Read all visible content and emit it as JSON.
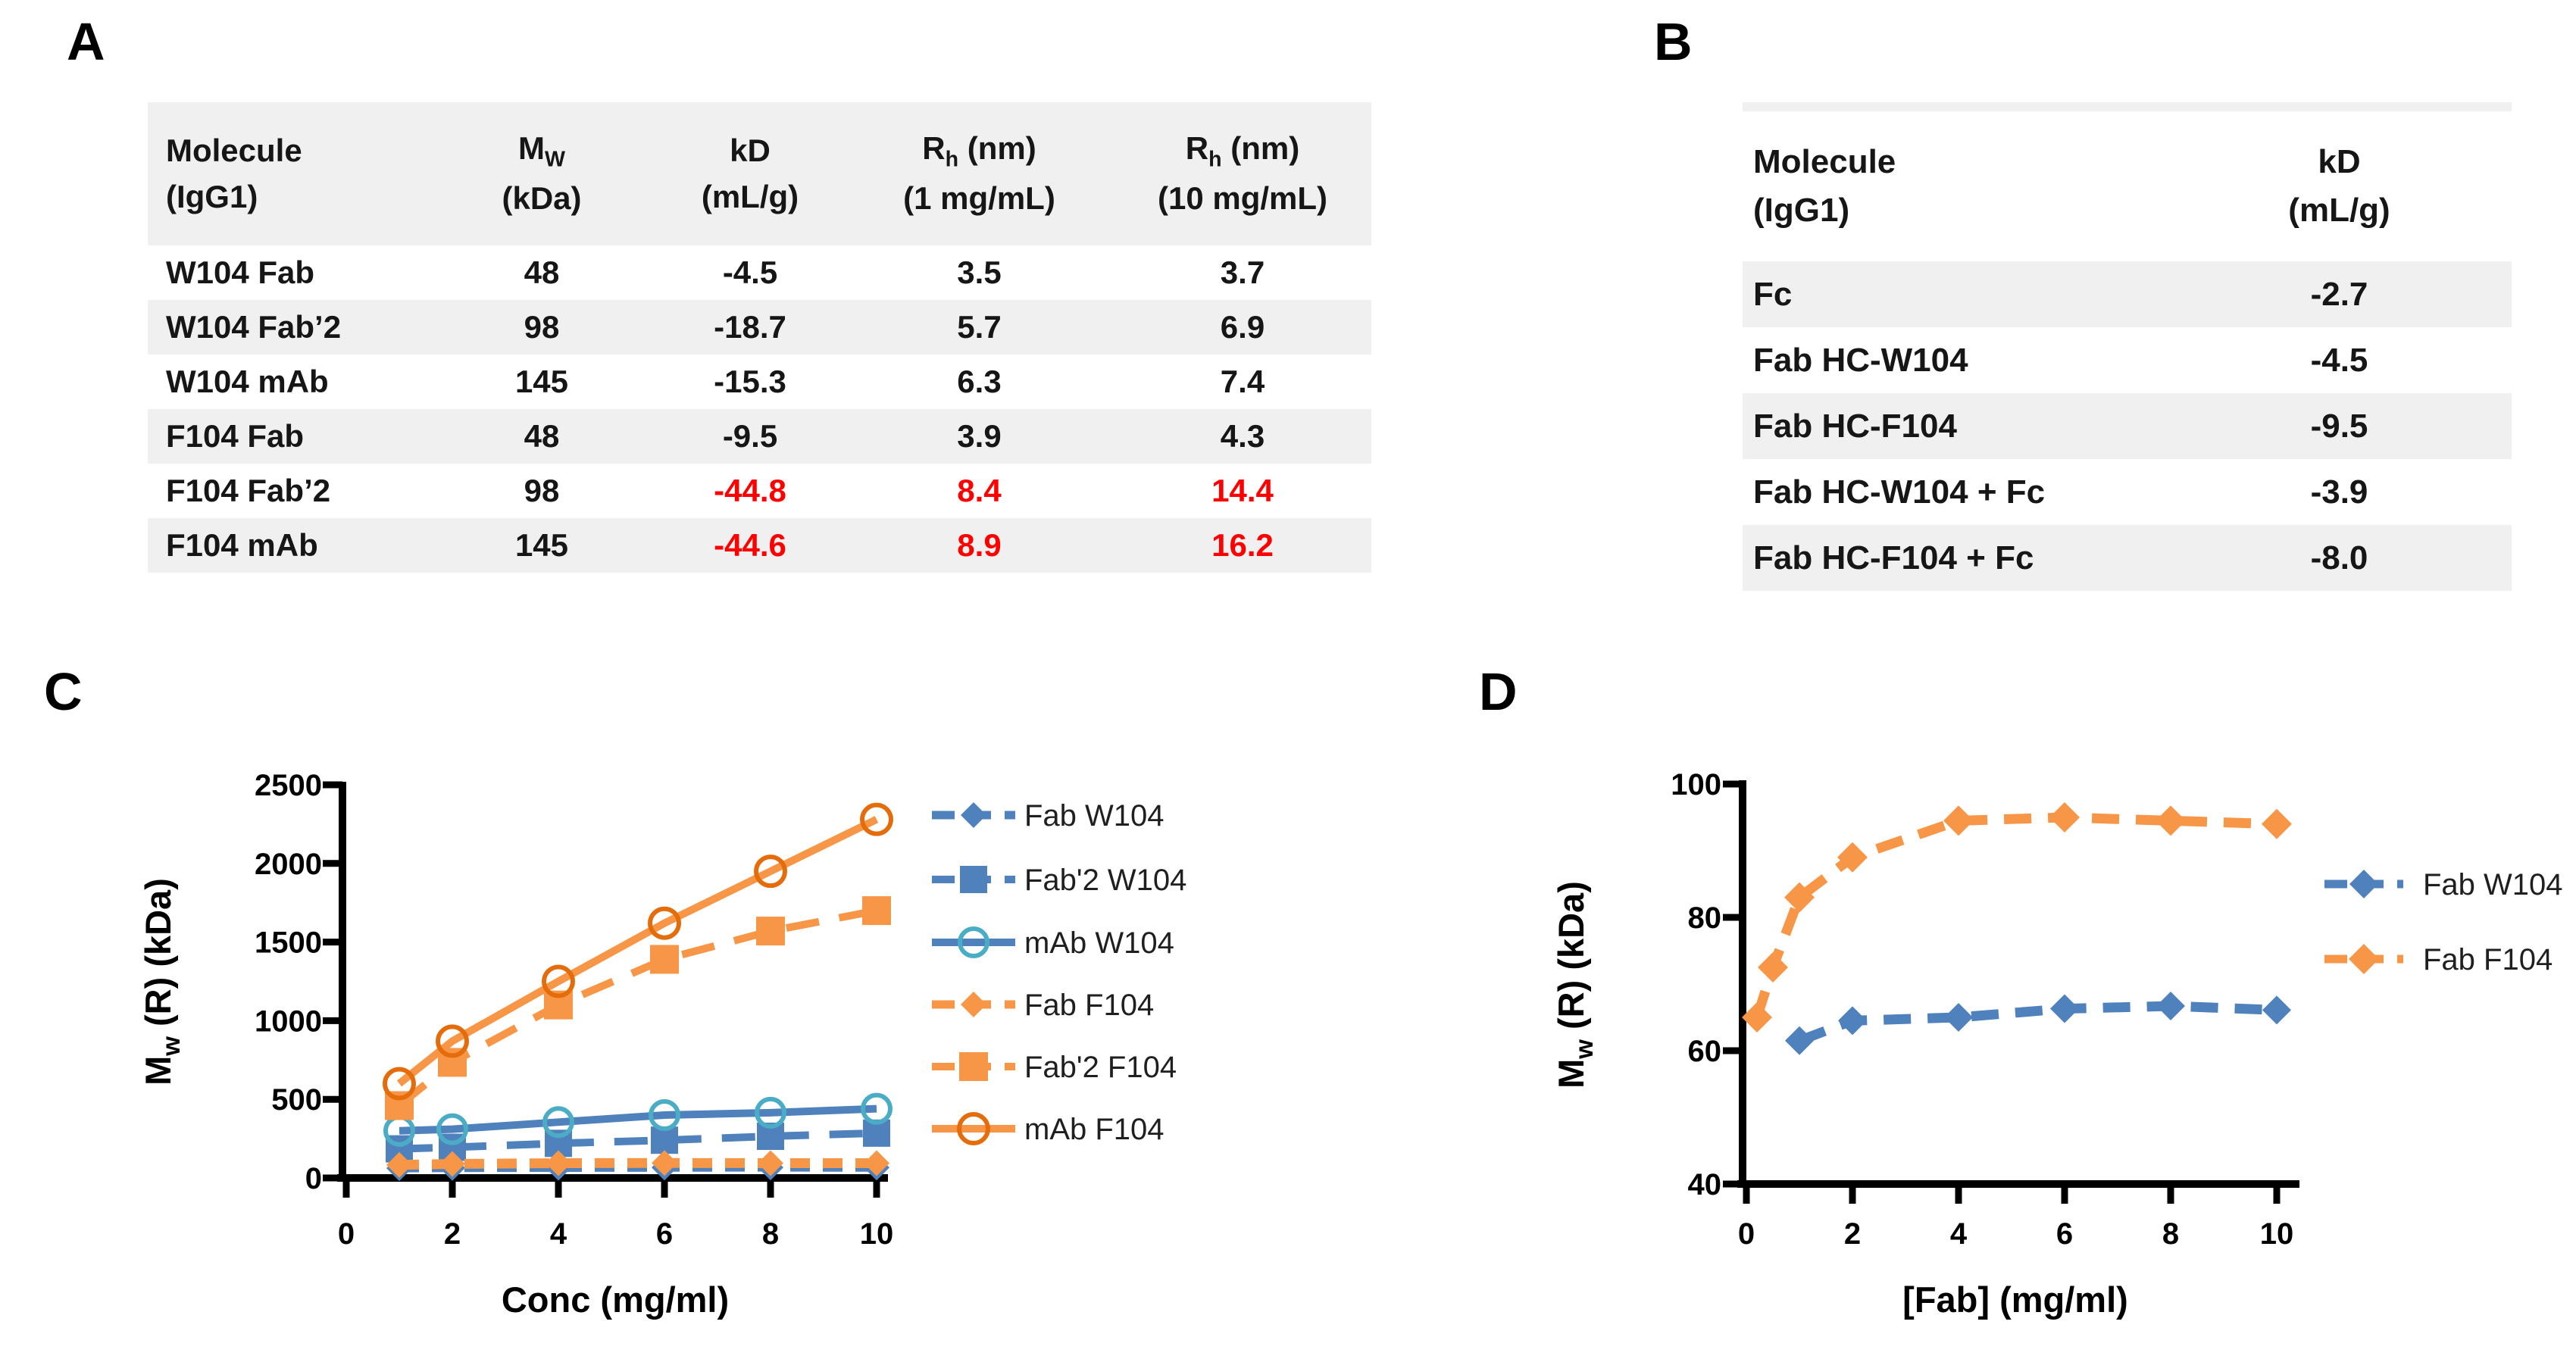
{
  "panels": {
    "a": {
      "label": "A",
      "table": {
        "header": {
          "molecule_html": "Molecule<br>(IgG1)",
          "mw_html": "M<sub>W</sub><br>(kDa)",
          "kd_html": "kD<br>(mL/g)",
          "rh1_html": "R<sub>h</sub> (nm)<br>(1 mg/mL)",
          "rh10_html": "R<sub>h</sub> (nm)<br>(10 mg/mL)"
        },
        "rows": [
          {
            "molecule": "W104 Fab",
            "mw": "48",
            "kd": "-4.5",
            "rh1": "3.5",
            "rh10": "3.7",
            "red": false
          },
          {
            "molecule": "W104 Fab’2",
            "mw": "98",
            "kd": "-18.7",
            "rh1": "5.7",
            "rh10": "6.9",
            "red": false
          },
          {
            "molecule": "W104 mAb",
            "mw": "145",
            "kd": "-15.3",
            "rh1": "6.3",
            "rh10": "7.4",
            "red": false
          },
          {
            "molecule": "F104 Fab",
            "mw": "48",
            "kd": "-9.5",
            "rh1": "3.9",
            "rh10": "4.3",
            "red": false
          },
          {
            "molecule": "F104 Fab’2",
            "mw": "98",
            "kd": "-44.8",
            "rh1": "8.4",
            "rh10": "14.4",
            "red": true
          },
          {
            "molecule": "F104 mAb",
            "mw": "145",
            "kd": "-44.6",
            "rh1": "8.9",
            "rh10": "16.2",
            "red": true
          }
        ]
      }
    },
    "b": {
      "label": "B",
      "table": {
        "header": {
          "molecule_html": "Molecule<br>(IgG1)",
          "kd_html": "kD<br>(mL/g)"
        },
        "rows": [
          {
            "molecule": "Fc",
            "kd": "-2.7"
          },
          {
            "molecule": "Fab HC-W104",
            "kd": "-4.5"
          },
          {
            "molecule": "Fab HC-F104",
            "kd": "-9.5"
          },
          {
            "molecule": "Fab HC-W104 + Fc",
            "kd": "-3.9"
          },
          {
            "molecule": "Fab HC-F104 + Fc",
            "kd": "-8.0"
          }
        ]
      }
    },
    "c": {
      "label": "C"
    },
    "d": {
      "label": "D"
    }
  },
  "colors": {
    "blue": "#4F81BD",
    "blue_circle_outline": "#4BACC6",
    "orange": "#F79646",
    "orange_circle_outline": "#E46C0A",
    "red_text": "#FF0000",
    "table_stripe": "#F0F0F0",
    "axis": "#000000",
    "legend_text": "#1f1f1f"
  },
  "chart_data": [
    {
      "type": "table",
      "panel": "A",
      "columns": [
        "Molecule (IgG1)",
        "Mw (kDa)",
        "kD (mL/g)",
        "Rh (nm) (1 mg/mL)",
        "Rh (nm) (10 mg/mL)"
      ],
      "rows": [
        [
          "W104 Fab",
          48,
          -4.5,
          3.5,
          3.7
        ],
        [
          "W104 Fab'2",
          98,
          -18.7,
          5.7,
          6.9
        ],
        [
          "W104 mAb",
          145,
          -15.3,
          6.3,
          7.4
        ],
        [
          "F104 Fab",
          48,
          -9.5,
          3.9,
          4.3
        ],
        [
          "F104 Fab'2",
          98,
          -44.8,
          8.4,
          14.4
        ],
        [
          "F104 mAb",
          145,
          -44.6,
          8.9,
          16.2
        ]
      ],
      "note": "kD, Rh(1 mg/mL) and Rh(10 mg/mL) values of F104 Fab'2 and F104 mAb rows are shown in red"
    },
    {
      "type": "table",
      "panel": "B",
      "columns": [
        "Molecule (IgG1)",
        "kD (mL/g)"
      ],
      "rows": [
        [
          "Fc",
          -2.7
        ],
        [
          "Fab HC-W104",
          -4.5
        ],
        [
          "Fab HC-F104",
          -9.5
        ],
        [
          "Fab HC-W104 + Fc",
          -3.9
        ],
        [
          "Fab HC-F104 + Fc",
          -8.0
        ]
      ]
    },
    {
      "type": "line",
      "panel": "C",
      "title": "",
      "xlabel": "Conc (mg/ml)",
      "ylabel": "Mw (R) (kDa)",
      "ylabel_segments": [
        {
          "t": "M"
        },
        {
          "t": "w",
          "sub": true
        },
        {
          "t": " (R) (kDa)"
        }
      ],
      "xlim": [
        0,
        10
      ],
      "ylim": [
        0,
        2500
      ],
      "xticks": [
        0,
        2,
        4,
        6,
        8,
        10
      ],
      "yticks": [
        0,
        500,
        1000,
        1500,
        2000,
        2500
      ],
      "grid": false,
      "legend_position": "right",
      "series": [
        {
          "name": "Fab W104",
          "color": "#4F81BD",
          "marker": "diamond",
          "line": "dashed",
          "x": [
            1,
            2,
            4,
            6,
            8,
            10
          ],
          "y": [
            62,
            64,
            65,
            66,
            67,
            66
          ]
        },
        {
          "name": "Fab'2 W104",
          "color": "#4F81BD",
          "marker": "square",
          "line": "long-dashed",
          "x": [
            1,
            2,
            4,
            6,
            8,
            10
          ],
          "y": [
            185,
            195,
            220,
            240,
            265,
            285
          ]
        },
        {
          "name": "mAb W104",
          "color": "#4F81BD",
          "marker": "circle-open",
          "marker_color": "#4BACC6",
          "line": "solid",
          "x": [
            1,
            2,
            4,
            6,
            8,
            10
          ],
          "y": [
            300,
            310,
            355,
            400,
            415,
            440
          ]
        },
        {
          "name": "Fab F104",
          "color": "#F79646",
          "marker": "diamond",
          "line": "dashed",
          "x": [
            1,
            2,
            4,
            6,
            8,
            10
          ],
          "y": [
            83,
            89,
            94,
            95,
            94,
            94
          ]
        },
        {
          "name": "Fab'2 F104",
          "color": "#F79646",
          "marker": "square",
          "line": "long-dashed",
          "x": [
            1,
            2,
            4,
            6,
            8,
            10
          ],
          "y": [
            460,
            735,
            1100,
            1390,
            1570,
            1700
          ]
        },
        {
          "name": "mAb F104",
          "color": "#F79646",
          "marker": "circle-open",
          "marker_color": "#E46C0A",
          "line": "solid",
          "x": [
            1,
            2,
            4,
            6,
            8,
            10
          ],
          "y": [
            600,
            870,
            1250,
            1620,
            1950,
            2280
          ]
        }
      ]
    },
    {
      "type": "line",
      "panel": "D",
      "title": "",
      "xlabel": "[Fab] (mg/ml)",
      "ylabel": "Mw (R) (kDa)",
      "ylabel_segments": [
        {
          "t": "M"
        },
        {
          "t": "w",
          "sub": true
        },
        {
          "t": " (R) (kDa)"
        }
      ],
      "xlim": [
        0,
        10
      ],
      "ylim": [
        40,
        100
      ],
      "xticks": [
        0,
        2,
        4,
        6,
        8,
        10
      ],
      "yticks": [
        40,
        60,
        80,
        100
      ],
      "grid": false,
      "legend_position": "right",
      "series": [
        {
          "name": "Fab W104",
          "color": "#4F81BD",
          "marker": "diamond",
          "line": "dashed",
          "x": [
            1,
            2,
            4,
            6,
            8,
            10
          ],
          "y": [
            61.5,
            64.5,
            65,
            66.3,
            66.7,
            66.1
          ]
        },
        {
          "name": "Fab F104",
          "color": "#F79646",
          "marker": "diamond",
          "line": "dashed",
          "x": [
            0.2,
            0.5,
            1,
            2,
            4,
            6,
            8,
            10
          ],
          "y": [
            65,
            72.5,
            83,
            89,
            94.5,
            95,
            94.5,
            94
          ]
        }
      ]
    }
  ]
}
